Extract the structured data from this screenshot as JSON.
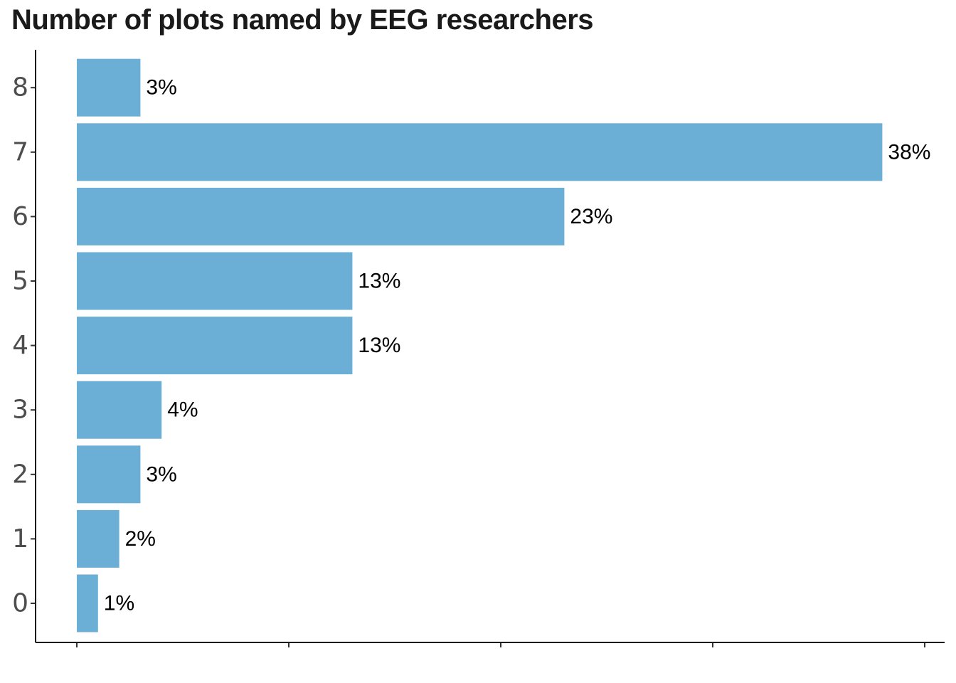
{
  "chart_data": {
    "type": "bar",
    "orientation": "horizontal",
    "title": "Number of plots named by EEG researchers",
    "xlabel": "",
    "ylabel": "",
    "categories": [
      "0",
      "1",
      "2",
      "3",
      "4",
      "5",
      "6",
      "7",
      "8"
    ],
    "values": [
      1,
      2,
      3,
      4,
      13,
      13,
      23,
      38,
      3
    ],
    "labels": [
      "1%",
      "2%",
      "3%",
      "4%",
      "13%",
      "13%",
      "23%",
      "38%",
      "3%"
    ],
    "xlim": [
      0,
      40
    ],
    "x_ticks": [
      0,
      10,
      20,
      30,
      40
    ],
    "x_tick_labels_shown": false,
    "grid": false,
    "legend": "none",
    "bar_color": "#6baed6"
  }
}
